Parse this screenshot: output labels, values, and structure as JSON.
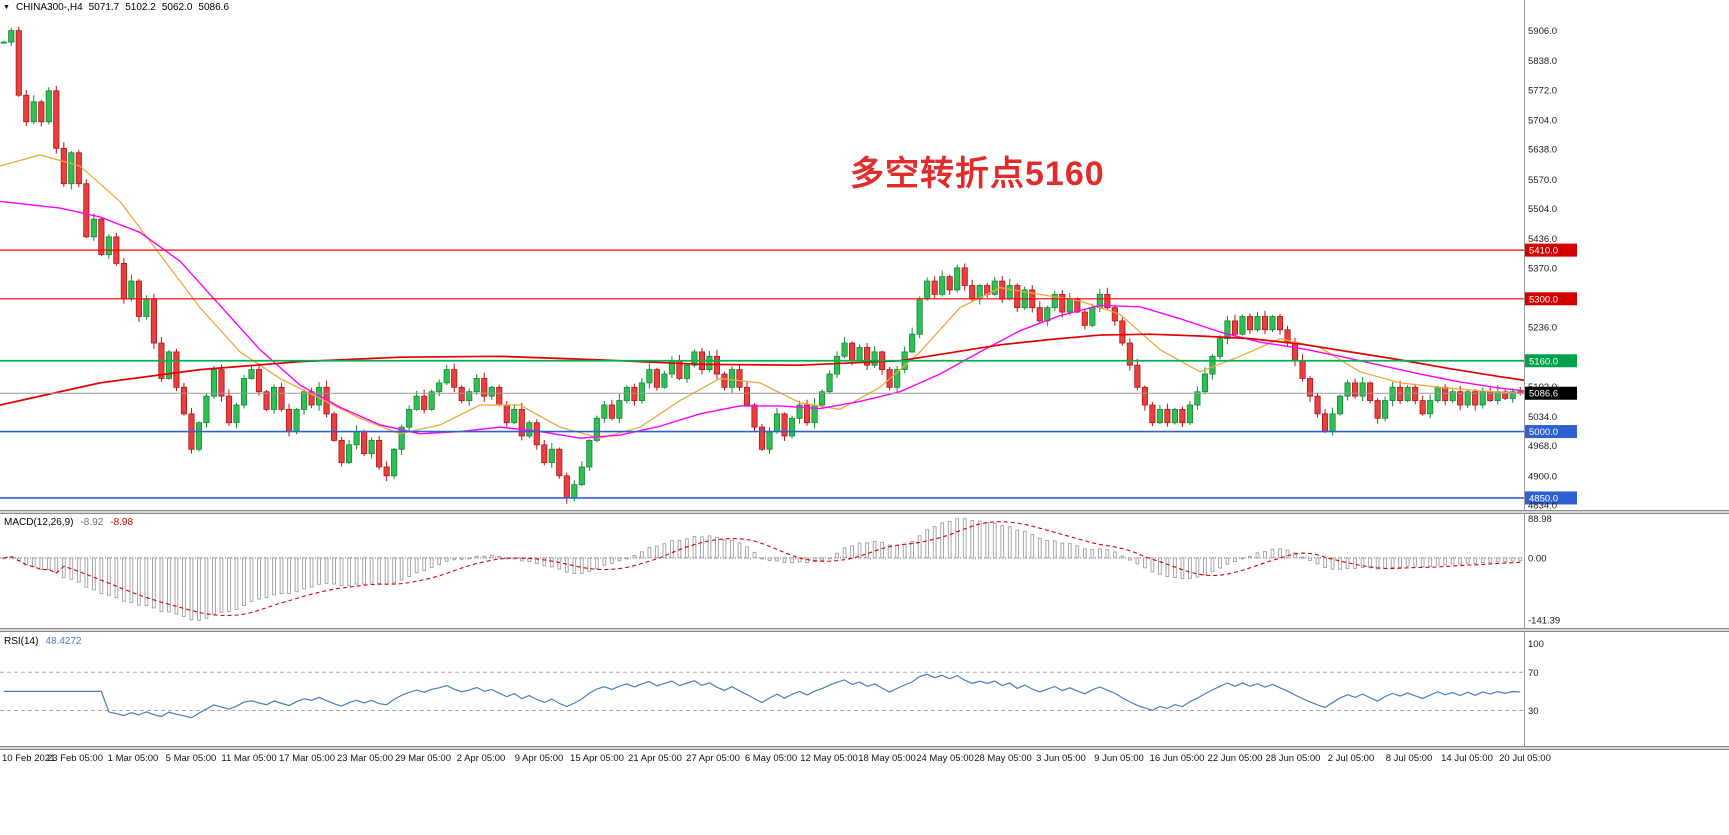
{
  "header": {
    "marker": "▼",
    "symbol_tf": "CHINA300-,H4",
    "open": "5071.7",
    "high": "5102.2",
    "low": "5062.0",
    "close": "5086.6"
  },
  "chart_data": {
    "type": "candlestick",
    "symbol": "CHINA300-",
    "timeframe": "H4",
    "last_price": 5086.6,
    "price_range": [
      4825,
      5930
    ],
    "annotation": {
      "text": "多空转折点5160",
      "color": "#e32b2b"
    },
    "y_ticks": [
      "5906.0",
      "5838.0",
      "5772.0",
      "5704.0",
      "5638.0",
      "5570.0",
      "5504.0",
      "5436.0",
      "5370.0",
      "5236.0",
      "5102.0",
      "5034.0",
      "4968.0",
      "4900.0",
      "4834.0"
    ],
    "x_labels": [
      "10 Feb 2021",
      "23 Feb 05:00",
      "1 Mar 05:00",
      "5 Mar 05:00",
      "11 Mar 05:00",
      "17 Mar 05:00",
      "23 Mar 05:00",
      "29 Mar 05:00",
      "2 Apr 05:00",
      "9 Apr 05:00",
      "15 Apr 05:00",
      "21 Apr 05:00",
      "27 Apr 05:00",
      "6 May 05:00",
      "12 May 05:00",
      "18 May 05:00",
      "24 May 05:00",
      "28 May 05:00",
      "3 Jun 05:00",
      "9 Jun 05:00",
      "16 Jun 05:00",
      "22 Jun 05:00",
      "28 Jun 05:00",
      "2 Jul 05:00",
      "8 Jul 05:00",
      "14 Jul 05:00",
      "20 Jul 05:00"
    ],
    "closes": [
      5880,
      5906,
      5760,
      5700,
      5745,
      5700,
      5770,
      5640,
      5560,
      5630,
      5560,
      5440,
      5480,
      5400,
      5440,
      5380,
      5300,
      5340,
      5260,
      5300,
      5200,
      5120,
      5180,
      5100,
      5040,
      4960,
      5020,
      5080,
      5140,
      5080,
      5020,
      5060,
      5120,
      5140,
      5090,
      5050,
      5100,
      5050,
      5000,
      5050,
      5090,
      5060,
      5100,
      5040,
      4980,
      4930,
      4970,
      5000,
      4950,
      4980,
      4920,
      4900,
      4960,
      5010,
      5050,
      5080,
      5050,
      5090,
      5110,
      5140,
      5100,
      5070,
      5090,
      5120,
      5080,
      5100,
      5060,
      5020,
      5050,
      4990,
      5020,
      4970,
      4930,
      4960,
      4900,
      4850,
      4880,
      4920,
      4980,
      5030,
      5060,
      5030,
      5070,
      5100,
      5070,
      5110,
      5140,
      5100,
      5130,
      5160,
      5120,
      5150,
      5180,
      5140,
      5170,
      5130,
      5100,
      5140,
      5100,
      5060,
      5010,
      4960,
      5000,
      5040,
      4990,
      5030,
      5060,
      5020,
      5060,
      5090,
      5130,
      5170,
      5200,
      5160,
      5190,
      5150,
      5180,
      5140,
      5100,
      5140,
      5180,
      5220,
      5300,
      5340,
      5310,
      5350,
      5320,
      5370,
      5330,
      5300,
      5330,
      5310,
      5340,
      5300,
      5330,
      5280,
      5320,
      5280,
      5250,
      5280,
      5310,
      5270,
      5300,
      5270,
      5240,
      5280,
      5310,
      5280,
      5250,
      5200,
      5150,
      5100,
      5060,
      5020,
      5050,
      5020,
      5050,
      5020,
      5060,
      5090,
      5130,
      5170,
      5210,
      5250,
      5220,
      5260,
      5230,
      5260,
      5230,
      5260,
      5230,
      5200,
      5160,
      5120,
      5080,
      5040,
      5000,
      5040,
      5080,
      5110,
      5080,
      5110,
      5070,
      5030,
      5070,
      5100,
      5070,
      5100,
      5070,
      5040,
      5070,
      5100,
      5070,
      5090,
      5060,
      5090,
      5060,
      5090,
      5070,
      5090,
      5075,
      5090,
      5086.6
    ],
    "overlays": {
      "ma_fast_orange": {
        "color": "#eda93c",
        "width": 1.3,
        "points": [
          [
            0,
            5600
          ],
          [
            40,
            5625
          ],
          [
            80,
            5600
          ],
          [
            120,
            5520
          ],
          [
            160,
            5400
          ],
          [
            200,
            5280
          ],
          [
            240,
            5180
          ],
          [
            280,
            5120
          ],
          [
            320,
            5075
          ],
          [
            360,
            5030
          ],
          [
            400,
            4995
          ],
          [
            440,
            5015
          ],
          [
            480,
            5060
          ],
          [
            520,
            5060
          ],
          [
            560,
            5010
          ],
          [
            600,
            4985
          ],
          [
            640,
            5010
          ],
          [
            680,
            5070
          ],
          [
            720,
            5120
          ],
          [
            760,
            5110
          ],
          [
            800,
            5065
          ],
          [
            840,
            5050
          ],
          [
            880,
            5100
          ],
          [
            920,
            5180
          ],
          [
            960,
            5280
          ],
          [
            1000,
            5325
          ],
          [
            1040,
            5310
          ],
          [
            1080,
            5295
          ],
          [
            1120,
            5265
          ],
          [
            1160,
            5185
          ],
          [
            1200,
            5135
          ],
          [
            1240,
            5170
          ],
          [
            1280,
            5210
          ],
          [
            1320,
            5190
          ],
          [
            1360,
            5135
          ],
          [
            1400,
            5110
          ],
          [
            1440,
            5100
          ],
          [
            1480,
            5092
          ],
          [
            1524,
            5086
          ]
        ]
      },
      "ma_mid_magenta": {
        "color": "#ff00ff",
        "width": 1.4,
        "points": [
          [
            0,
            5520
          ],
          [
            60,
            5505
          ],
          [
            100,
            5485
          ],
          [
            140,
            5450
          ],
          [
            180,
            5385
          ],
          [
            220,
            5285
          ],
          [
            260,
            5185
          ],
          [
            300,
            5105
          ],
          [
            340,
            5055
          ],
          [
            380,
            5015
          ],
          [
            420,
            4995
          ],
          [
            460,
            5000
          ],
          [
            500,
            5010
          ],
          [
            540,
            5000
          ],
          [
            580,
            4985
          ],
          [
            620,
            4992
          ],
          [
            660,
            5012
          ],
          [
            700,
            5040
          ],
          [
            740,
            5058
          ],
          [
            780,
            5058
          ],
          [
            820,
            5052
          ],
          [
            860,
            5068
          ],
          [
            900,
            5090
          ],
          [
            940,
            5130
          ],
          [
            980,
            5180
          ],
          [
            1020,
            5228
          ],
          [
            1060,
            5262
          ],
          [
            1100,
            5285
          ],
          [
            1140,
            5282
          ],
          [
            1180,
            5255
          ],
          [
            1220,
            5225
          ],
          [
            1260,
            5202
          ],
          [
            1300,
            5188
          ],
          [
            1340,
            5170
          ],
          [
            1380,
            5150
          ],
          [
            1420,
            5130
          ],
          [
            1460,
            5112
          ],
          [
            1500,
            5098
          ],
          [
            1524,
            5092
          ]
        ]
      },
      "ma_slow_red": {
        "color": "#e00000",
        "width": 1.7,
        "points": [
          [
            0,
            5060
          ],
          [
            100,
            5110
          ],
          [
            200,
            5140
          ],
          [
            300,
            5158
          ],
          [
            400,
            5168
          ],
          [
            500,
            5170
          ],
          [
            600,
            5162
          ],
          [
            700,
            5152
          ],
          [
            800,
            5150
          ],
          [
            900,
            5160
          ],
          [
            950,
            5178
          ],
          [
            1000,
            5196
          ],
          [
            1050,
            5208
          ],
          [
            1100,
            5218
          ],
          [
            1150,
            5220
          ],
          [
            1200,
            5216
          ],
          [
            1250,
            5210
          ],
          [
            1300,
            5198
          ],
          [
            1350,
            5180
          ],
          [
            1400,
            5162
          ],
          [
            1450,
            5142
          ],
          [
            1500,
            5124
          ],
          [
            1524,
            5116
          ]
        ]
      }
    },
    "hlines": [
      {
        "price": 5410,
        "color": "#ff0000",
        "w": 1.2,
        "label": "5410.0",
        "tag_color": "#d40000"
      },
      {
        "price": 5300,
        "color": "#ff0000",
        "w": 1.2,
        "label": "5300.0",
        "tag_color": "#d40000"
      },
      {
        "price": 5160,
        "color": "#00b050",
        "w": 1.7,
        "label": "5160.0",
        "tag_color": "#00a14b"
      },
      {
        "price": 5086.6,
        "color": "#9a9a9a",
        "w": 1.0,
        "label": "5086.6",
        "tag_color": "#000000"
      },
      {
        "price": 5000,
        "color": "#3060d0",
        "w": 1.6,
        "label": "5000.0",
        "tag_color": "#3060d0"
      },
      {
        "price": 4850,
        "color": "#3060d0",
        "w": 1.6,
        "label": "4850.0",
        "tag_color": "#3060d0"
      }
    ],
    "indicators": {
      "macd": {
        "label": "MACD(12,26,9)",
        "value_main": "-8.92",
        "value_signal": "-8.98",
        "axis": [
          "88.98",
          "0.00",
          "-141.39"
        ],
        "scale_max": 88.98,
        "scale_min": -141.39,
        "histogram_color": "#9e9e9e",
        "signal_color": "#d40000"
      },
      "rsi": {
        "label": "RSI(14)",
        "value": "48.4272",
        "axis": [
          "100",
          "70",
          "30"
        ],
        "levels": [
          70,
          30
        ],
        "line_color": "#4a7ebb"
      }
    },
    "candle_colors": {
      "up_fill": "#2fbf52",
      "up_stroke": "#128736",
      "down_fill": "#e84040",
      "down_stroke": "#b31414"
    }
  }
}
